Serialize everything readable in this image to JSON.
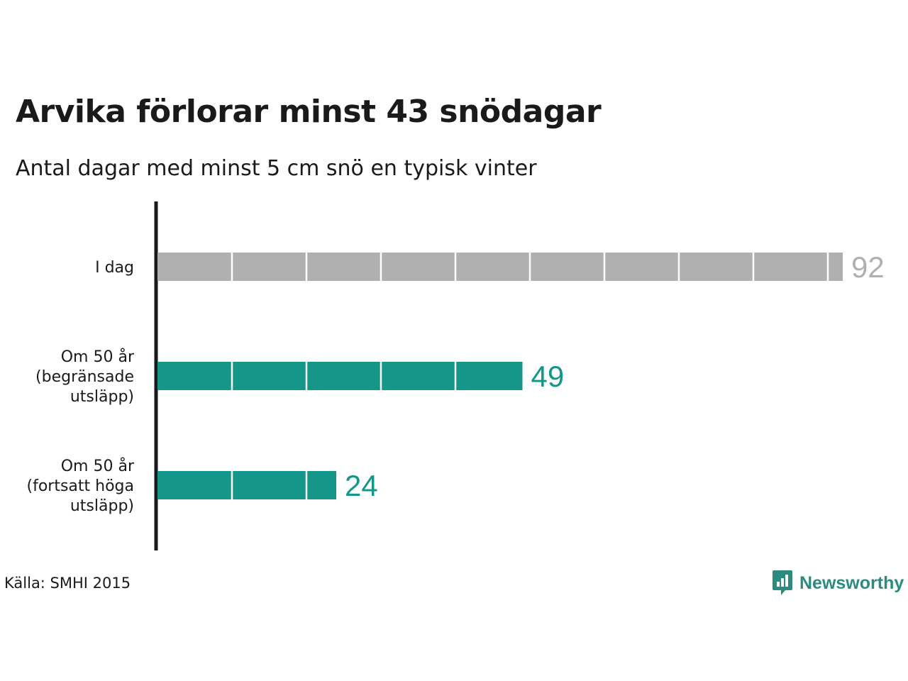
{
  "title": "Arvika förlorar minst 43 snödagar",
  "subtitle": "Antal dagar med minst 5 cm snö en typisk vinter",
  "source": "Källa: SMHI 2015",
  "brand": {
    "name": "Newsworthy",
    "icon": "newsworthy-logo-icon",
    "color": "#2b8b7e"
  },
  "chart_data": {
    "type": "bar",
    "orientation": "horizontal",
    "title": "Arvika förlorar minst 43 snödagar",
    "subtitle": "Antal dagar med minst 5 cm snö en typisk vinter",
    "categories": [
      [
        "I dag"
      ],
      [
        "Om 50 år",
        "(begränsade",
        "utsläpp)"
      ],
      [
        "Om 50 år",
        "(fortsatt höga",
        "utsläpp)"
      ]
    ],
    "values": [
      92,
      49,
      24
    ],
    "colors": [
      "#b0b0b0",
      "#149688",
      "#149688"
    ],
    "segment_size": 10,
    "xlim": [
      0,
      92
    ],
    "grid": false,
    "legend": "none"
  }
}
